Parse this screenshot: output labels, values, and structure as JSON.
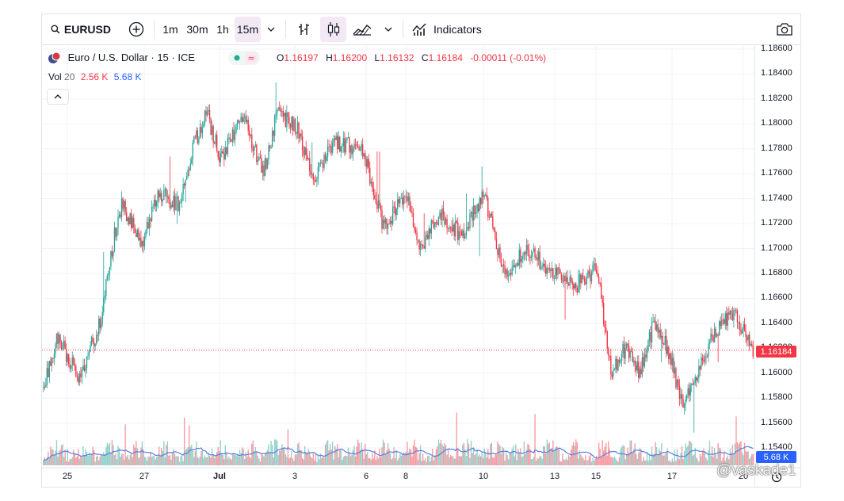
{
  "toolbar": {
    "symbol": "EURUSD",
    "intervals": [
      "1m",
      "30m",
      "1h",
      "15m"
    ],
    "active_interval": "15m",
    "indicators_label": "Indicators",
    "icons": [
      "search-icon",
      "add-symbol-icon",
      "chevron-down-icon",
      "bar-style-icon",
      "candles-icon",
      "area-style-icon",
      "chevron-down-icon",
      "indicators-icon",
      "camera-icon"
    ]
  },
  "legend": {
    "title": "Euro / U.S. Dollar · 15 · ICE",
    "open_label": "O",
    "open": "1.16197",
    "high_label": "H",
    "high": "1.16200",
    "low_label": "L",
    "low": "1.16132",
    "close_label": "C",
    "close": "1.16184",
    "change": "-0.00011 (-0.01%)"
  },
  "volume": {
    "label": "Vol",
    "length": "20",
    "value_down": "2.56 K",
    "value_avg": "5.68 K"
  },
  "colors": {
    "up": "#26a69a",
    "down": "#f23645",
    "volume_ma": "#5b7fe0",
    "last_price_line": "#f23645"
  },
  "watermark": "@vaskade1",
  "chart_data": {
    "type": "candlestick",
    "symbol": "EURUSD",
    "interval": "15m",
    "last_price": 1.16184,
    "last_volume_avg_label": "5.68 K",
    "y_axis_ticks": [
      "1.18600",
      "1.18400",
      "1.18200",
      "1.18000",
      "1.17800",
      "1.17600",
      "1.17400",
      "1.17200",
      "1.17000",
      "1.16800",
      "1.16600",
      "1.16400",
      "1.16200",
      "1.16000",
      "1.15800",
      "1.15600",
      "1.15400"
    ],
    "ylim": [
      1.1535,
      1.1868
    ],
    "x_axis_ticks": [
      "25",
      "27",
      "Jul",
      "3",
      "6",
      "8",
      "10",
      "13",
      "15",
      "17",
      "20"
    ],
    "close_path": [
      {
        "x": 0.0,
        "y": 1.1588
      },
      {
        "x": 0.02,
        "y": 1.163
      },
      {
        "x": 0.05,
        "y": 1.1595
      },
      {
        "x": 0.08,
        "y": 1.164
      },
      {
        "x": 0.1,
        "y": 1.171
      },
      {
        "x": 0.11,
        "y": 1.1735
      },
      {
        "x": 0.14,
        "y": 1.1705
      },
      {
        "x": 0.16,
        "y": 1.1745
      },
      {
        "x": 0.19,
        "y": 1.1735
      },
      {
        "x": 0.21,
        "y": 1.178
      },
      {
        "x": 0.23,
        "y": 1.181
      },
      {
        "x": 0.25,
        "y": 1.177
      },
      {
        "x": 0.28,
        "y": 1.1808
      },
      {
        "x": 0.31,
        "y": 1.176
      },
      {
        "x": 0.33,
        "y": 1.181
      },
      {
        "x": 0.36,
        "y": 1.1795
      },
      {
        "x": 0.38,
        "y": 1.1755
      },
      {
        "x": 0.41,
        "y": 1.1785
      },
      {
        "x": 0.45,
        "y": 1.178
      },
      {
        "x": 0.48,
        "y": 1.1715
      },
      {
        "x": 0.51,
        "y": 1.1745
      },
      {
        "x": 0.53,
        "y": 1.17
      },
      {
        "x": 0.56,
        "y": 1.1728
      },
      {
        "x": 0.59,
        "y": 1.171
      },
      {
        "x": 0.62,
        "y": 1.1745
      },
      {
        "x": 0.65,
        "y": 1.168
      },
      {
        "x": 0.68,
        "y": 1.17
      },
      {
        "x": 0.72,
        "y": 1.168
      },
      {
        "x": 0.75,
        "y": 1.167
      },
      {
        "x": 0.78,
        "y": 1.1685
      },
      {
        "x": 0.8,
        "y": 1.16
      },
      {
        "x": 0.82,
        "y": 1.162
      },
      {
        "x": 0.84,
        "y": 1.16
      },
      {
        "x": 0.86,
        "y": 1.164
      },
      {
        "x": 0.88,
        "y": 1.162
      },
      {
        "x": 0.9,
        "y": 1.1575
      },
      {
        "x": 0.92,
        "y": 1.16
      },
      {
        "x": 0.94,
        "y": 1.1625
      },
      {
        "x": 0.97,
        "y": 1.165
      },
      {
        "x": 1.0,
        "y": 1.16184
      }
    ]
  }
}
